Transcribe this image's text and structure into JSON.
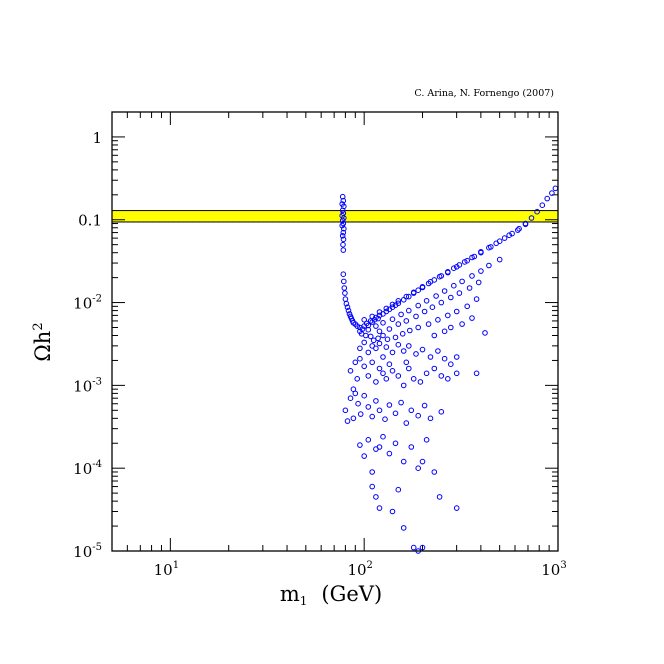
{
  "chart_data": {
    "type": "scatter",
    "title": "",
    "annotation": "C. Arina, N. Fornengo (2007)",
    "xlabel": {
      "main": "m",
      "sub": "1",
      "unit": "(GeV)"
    },
    "ylabel": {
      "base": "Ωh",
      "sup": "2"
    },
    "x_scale": "log",
    "y_scale": "log",
    "xlim": [
      5,
      1000
    ],
    "ylim": [
      1e-05,
      2
    ],
    "x_ticks": [
      {
        "value": 10,
        "base": "10",
        "exp": "1"
      },
      {
        "value": 100,
        "base": "10",
        "exp": "2"
      },
      {
        "value": 1000,
        "base": "10",
        "exp": "3"
      }
    ],
    "y_ticks": [
      {
        "value": 1,
        "text": "1"
      },
      {
        "value": 0.1,
        "text": "0.1"
      },
      {
        "value": 0.01,
        "base": "10",
        "exp": "-2"
      },
      {
        "value": 0.001,
        "base": "10",
        "exp": "-3"
      },
      {
        "value": 0.0001,
        "base": "10",
        "exp": "-4"
      },
      {
        "value": 1e-05,
        "base": "10",
        "exp": "-5"
      }
    ],
    "grid": false,
    "marker": {
      "shape": "open-circle",
      "color": "#0000ff"
    },
    "band": {
      "y_range": [
        0.094,
        0.129
      ],
      "fill": "#ffff00",
      "line_y": 0.094
    },
    "series": [
      {
        "points": [
          [
            77.5,
            0.19
          ],
          [
            78,
            0.17
          ],
          [
            77,
            0.155
          ],
          [
            78.5,
            0.145
          ],
          [
            77.5,
            0.13
          ],
          [
            78,
            0.12
          ],
          [
            77,
            0.112
          ],
          [
            78.5,
            0.105
          ],
          [
            77.5,
            0.098
          ],
          [
            78,
            0.09
          ],
          [
            77,
            0.085
          ],
          [
            78.5,
            0.078
          ],
          [
            78,
            0.07
          ],
          [
            77.5,
            0.064
          ],
          [
            78.2,
            0.058
          ],
          [
            77.8,
            0.05
          ],
          [
            78,
            0.043
          ],
          [
            78,
            0.022
          ],
          [
            78.5,
            0.018
          ],
          [
            79,
            0.015
          ],
          [
            79.5,
            0.013
          ],
          [
            80,
            0.011
          ],
          [
            81,
            0.0097
          ],
          [
            82,
            0.0088
          ],
          [
            83,
            0.008
          ],
          [
            84,
            0.0073
          ],
          [
            85,
            0.0068
          ],
          [
            86,
            0.0064
          ],
          [
            87,
            0.006
          ],
          [
            88,
            0.0057
          ],
          [
            90,
            0.0055
          ],
          [
            92,
            0.0052
          ],
          [
            95,
            0.005
          ],
          [
            95,
            0.0045
          ],
          [
            98,
            0.0048
          ],
          [
            100,
            0.0052
          ],
          [
            103,
            0.0056
          ],
          [
            105,
            0.0053
          ],
          [
            108,
            0.006
          ],
          [
            110,
            0.0058
          ],
          [
            113,
            0.0062
          ],
          [
            115,
            0.0066
          ],
          [
            118,
            0.0064
          ],
          [
            120,
            0.007
          ],
          [
            125,
            0.0073
          ],
          [
            130,
            0.0078
          ],
          [
            135,
            0.0083
          ],
          [
            140,
            0.0088
          ],
          [
            145,
            0.0093
          ],
          [
            150,
            0.0098
          ],
          [
            160,
            0.0108
          ],
          [
            170,
            0.0118
          ],
          [
            180,
            0.013
          ],
          [
            190,
            0.0141
          ],
          [
            200,
            0.0152
          ],
          [
            215,
            0.017
          ],
          [
            230,
            0.0188
          ],
          [
            250,
            0.021
          ],
          [
            270,
            0.0235
          ],
          [
            290,
            0.026
          ],
          [
            310,
            0.0285
          ],
          [
            340,
            0.032
          ],
          [
            370,
            0.036
          ],
          [
            400,
            0.041
          ],
          [
            440,
            0.046
          ],
          [
            480,
            0.052
          ],
          [
            530,
            0.06
          ],
          [
            580,
            0.068
          ],
          [
            630,
            0.078
          ],
          [
            680,
            0.09
          ],
          [
            730,
            0.105
          ],
          [
            780,
            0.125
          ],
          [
            830,
            0.15
          ],
          [
            880,
            0.18
          ],
          [
            930,
            0.21
          ],
          [
            970,
            0.24
          ],
          [
            100,
            0.0062
          ],
          [
            110,
            0.0068
          ],
          [
            120,
            0.0077
          ],
          [
            130,
            0.0085
          ],
          [
            140,
            0.0095
          ],
          [
            150,
            0.0105
          ],
          [
            165,
            0.0118
          ],
          [
            180,
            0.0133
          ],
          [
            200,
            0.0155
          ],
          [
            220,
            0.0178
          ],
          [
            245,
            0.0205
          ],
          [
            270,
            0.023
          ],
          [
            300,
            0.027
          ],
          [
            330,
            0.031
          ],
          [
            360,
            0.035
          ],
          [
            400,
            0.04
          ],
          [
            450,
            0.047
          ],
          [
            500,
            0.055
          ],
          [
            560,
            0.065
          ],
          [
            620,
            0.075
          ],
          [
            680,
            0.088
          ],
          [
            105,
            0.0047
          ],
          [
            115,
            0.0052
          ],
          [
            125,
            0.0057
          ],
          [
            140,
            0.0063
          ],
          [
            155,
            0.0072
          ],
          [
            170,
            0.008
          ],
          [
            190,
            0.0092
          ],
          [
            210,
            0.0105
          ],
          [
            235,
            0.012
          ],
          [
            260,
            0.0138
          ],
          [
            290,
            0.016
          ],
          [
            320,
            0.018
          ],
          [
            360,
            0.021
          ],
          [
            400,
            0.024
          ],
          [
            440,
            0.028
          ],
          [
            500,
            0.033
          ],
          [
            120,
            0.0045
          ],
          [
            135,
            0.0048
          ],
          [
            150,
            0.0055
          ],
          [
            165,
            0.006
          ],
          [
            185,
            0.0068
          ],
          [
            205,
            0.0078
          ],
          [
            225,
            0.0088
          ],
          [
            250,
            0.01
          ],
          [
            280,
            0.0115
          ],
          [
            310,
            0.013
          ],
          [
            350,
            0.015
          ],
          [
            390,
            0.0175
          ],
          [
            97,
            0.0042
          ],
          [
            102,
            0.004
          ],
          [
            108,
            0.0039
          ],
          [
            112,
            0.0035
          ],
          [
            118,
            0.0037
          ],
          [
            125,
            0.004
          ],
          [
            132,
            0.0036
          ],
          [
            145,
            0.0038
          ],
          [
            158,
            0.0042
          ],
          [
            172,
            0.0046
          ],
          [
            190,
            0.005
          ],
          [
            215,
            0.0055
          ],
          [
            240,
            0.0062
          ],
          [
            270,
            0.007
          ],
          [
            300,
            0.0078
          ],
          [
            340,
            0.009
          ],
          [
            380,
            0.011
          ],
          [
            420,
            0.0043
          ],
          [
            360,
            0.0065
          ],
          [
            320,
            0.0055
          ],
          [
            280,
            0.005
          ],
          [
            260,
            0.0045
          ],
          [
            230,
            0.004
          ],
          [
            95,
            0.0028
          ],
          [
            100,
            0.0033
          ],
          [
            105,
            0.0025
          ],
          [
            110,
            0.003
          ],
          [
            115,
            0.0028
          ],
          [
            120,
            0.0032
          ],
          [
            125,
            0.0022
          ],
          [
            130,
            0.0029
          ],
          [
            140,
            0.0025
          ],
          [
            150,
            0.0031
          ],
          [
            160,
            0.0026
          ],
          [
            170,
            0.003
          ],
          [
            185,
            0.0024
          ],
          [
            200,
            0.0027
          ],
          [
            220,
            0.0022
          ],
          [
            240,
            0.0026
          ],
          [
            260,
            0.0021
          ],
          [
            280,
            0.0018
          ],
          [
            300,
            0.0022
          ],
          [
            85,
            0.0015
          ],
          [
            88,
            0.0009
          ],
          [
            90,
            0.0019
          ],
          [
            92,
            0.0012
          ],
          [
            95,
            0.0021
          ],
          [
            100,
            0.0017
          ],
          [
            105,
            0.0013
          ],
          [
            110,
            0.0019
          ],
          [
            115,
            0.0011
          ],
          [
            120,
            0.0016
          ],
          [
            125,
            0.0014
          ],
          [
            130,
            0.0012
          ],
          [
            140,
            0.0015
          ],
          [
            150,
            0.0013
          ],
          [
            160,
            0.001
          ],
          [
            170,
            0.0016
          ],
          [
            180,
            0.0012
          ],
          [
            195,
            0.0011
          ],
          [
            210,
            0.0014
          ],
          [
            230,
            0.0016
          ],
          [
            250,
            0.0013
          ],
          [
            270,
            0.0012
          ],
          [
            300,
            0.0014
          ],
          [
            380,
            0.0014
          ],
          [
            165,
            0.0019
          ],
          [
            135,
            0.0018
          ],
          [
            80,
            0.0005
          ],
          [
            82,
            0.00037
          ],
          [
            85,
            0.0007
          ],
          [
            88,
            0.0004
          ],
          [
            90,
            0.0008
          ],
          [
            93,
            0.0006
          ],
          [
            96,
            0.00045
          ],
          [
            100,
            0.00075
          ],
          [
            105,
            0.00055
          ],
          [
            110,
            0.00042
          ],
          [
            115,
            0.00065
          ],
          [
            120,
            0.0005
          ],
          [
            128,
            0.00039
          ],
          [
            135,
            0.00058
          ],
          [
            145,
            0.00046
          ],
          [
            155,
            0.00062
          ],
          [
            165,
            0.00035
          ],
          [
            175,
            0.0005
          ],
          [
            190,
            0.00043
          ],
          [
            205,
            0.00057
          ],
          [
            220,
            0.0004
          ],
          [
            250,
            0.00048
          ],
          [
            95,
            0.00019
          ],
          [
            100,
            0.00014
          ],
          [
            105,
            0.00022
          ],
          [
            110,
            9e-05
          ],
          [
            115,
            0.00017
          ],
          [
            125,
            0.00024
          ],
          [
            135,
            0.00015
          ],
          [
            145,
            0.0002
          ],
          [
            160,
            0.00012
          ],
          [
            175,
            0.00018
          ],
          [
            190,
            0.0001
          ],
          [
            200,
            0.00012
          ],
          [
            210,
            0.00022
          ],
          [
            230,
            9e-05
          ],
          [
            120,
            0.00018
          ],
          [
            110,
            6e-05
          ],
          [
            115,
            4.5e-05
          ],
          [
            120,
            3.3e-05
          ],
          [
            140,
            3e-05
          ],
          [
            160,
            1.9e-05
          ],
          [
            180,
            1.1e-05
          ],
          [
            190,
            1e-05
          ],
          [
            200,
            1.1e-05
          ],
          [
            245,
            4.5e-05
          ],
          [
            300,
            3.3e-05
          ],
          [
            150,
            5.5e-05
          ]
        ]
      }
    ]
  }
}
